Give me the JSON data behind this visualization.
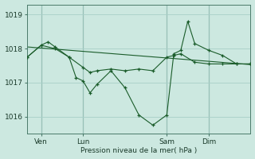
{
  "background_color": "#cce8e0",
  "grid_color": "#a8cfc8",
  "line_color": "#1a5c2a",
  "xlabel": "Pression niveau de la mer( hPa )",
  "ylim": [
    1015.5,
    1019.3
  ],
  "yticks": [
    1016,
    1017,
    1018,
    1019
  ],
  "xtick_labels": [
    "Ven",
    "Lun",
    "Sam",
    "Dim"
  ],
  "xtick_positions": [
    1,
    4,
    10,
    13
  ],
  "vline_positions": [
    1,
    4,
    10,
    13
  ],
  "xlim": [
    0,
    16
  ],
  "trend_x": [
    0,
    16
  ],
  "trend_y": [
    1018.05,
    1017.53
  ],
  "s1_x": [
    0,
    1,
    1.5,
    2,
    3,
    3.5,
    4,
    4.5,
    5,
    6,
    7,
    8,
    9,
    10,
    10.5,
    11,
    11.5,
    12,
    13,
    14,
    15,
    16
  ],
  "s1_y": [
    1017.75,
    1018.1,
    1018.2,
    1018.05,
    1017.75,
    1017.15,
    1017.05,
    1016.7,
    1016.95,
    1017.35,
    1016.85,
    1016.05,
    1015.75,
    1016.05,
    1017.85,
    1017.95,
    1018.8,
    1018.15,
    1017.95,
    1017.8,
    1017.55,
    1017.55
  ],
  "s2_x": [
    0,
    1,
    2,
    3,
    4,
    4.5,
    5,
    6,
    7,
    8,
    9,
    10,
    10.5,
    11,
    12,
    13,
    14,
    15,
    16
  ],
  "s2_y": [
    1017.75,
    1018.1,
    1018.0,
    1017.75,
    1017.45,
    1017.3,
    1017.35,
    1017.4,
    1017.35,
    1017.4,
    1017.35,
    1017.75,
    1017.8,
    1017.85,
    1017.6,
    1017.55,
    1017.55,
    1017.55,
    1017.55
  ]
}
